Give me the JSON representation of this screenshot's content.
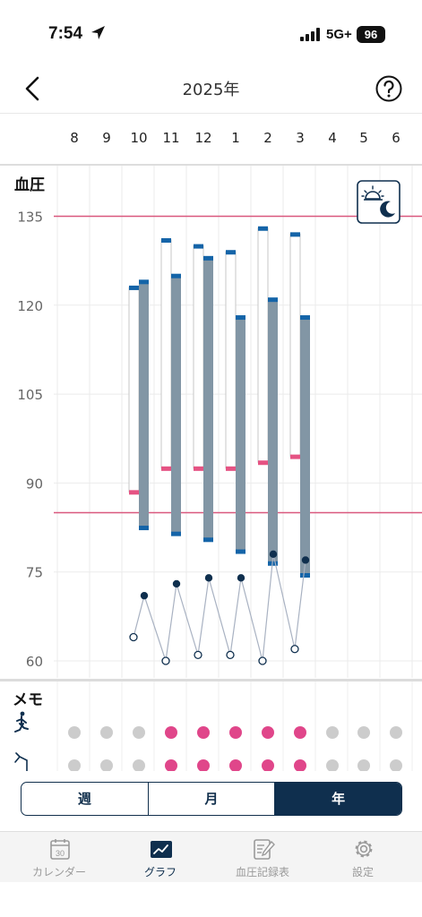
{
  "status_bar": {
    "time": "7:54",
    "network": "5G+",
    "battery": "96"
  },
  "nav": {
    "title": "2025年"
  },
  "months": [
    "8",
    "9",
    "10",
    "11",
    "12",
    "1",
    "2",
    "3",
    "4",
    "5",
    "6"
  ],
  "chart": {
    "ylabel": "血圧",
    "y_ticks": [
      "135",
      "120",
      "105",
      "90",
      "75",
      "60"
    ]
  },
  "chart_data": {
    "type": "bar",
    "categories": [
      "8",
      "9",
      "10",
      "11",
      "12",
      "1",
      "2",
      "3",
      "4",
      "5",
      "6"
    ],
    "ylabel": "血圧",
    "ylim": [
      58,
      150
    ],
    "y_ticks": [
      135,
      120,
      105,
      90,
      75,
      60
    ],
    "reference_lines": [
      135,
      85
    ],
    "series": [
      {
        "values": [
          null,
          null,
          123,
          131,
          130,
          129,
          133,
          132,
          null,
          null,
          null
        ]
      },
      {
        "values": [
          null,
          null,
          88.5,
          92.5,
          92.5,
          92.5,
          93.5,
          94.5,
          null,
          null,
          null
        ]
      },
      {
        "values": [
          null,
          null,
          124,
          125,
          128,
          118,
          121,
          118,
          null,
          null,
          null
        ]
      },
      {
        "values": [
          null,
          null,
          82.5,
          81.5,
          80.5,
          78.5,
          76.5,
          74.5,
          null,
          null,
          null
        ]
      },
      {
        "values": [
          null,
          null,
          64,
          60,
          61,
          61,
          60,
          62,
          null,
          null,
          null
        ]
      },
      {
        "values": [
          null,
          null,
          71,
          73,
          74,
          74,
          78,
          77,
          null,
          null,
          null
        ]
      }
    ],
    "colors": {
      "range_bar": "#8296a5",
      "cap": "#1464a8",
      "pink_marker": "#e55383",
      "limit_line": "#d9587e",
      "dot_dark": "#0f2f4e"
    }
  },
  "memo": {
    "title": "メモ",
    "rows": [
      {
        "icon": "walking-icon",
        "active": [
          false,
          false,
          false,
          true,
          true,
          true,
          true,
          true,
          false,
          false,
          false
        ]
      },
      {
        "icon": "alcohol-icon",
        "active": [
          false,
          false,
          false,
          true,
          true,
          true,
          true,
          true,
          false,
          false,
          false
        ]
      }
    ],
    "dot_active_color": "#e0468a",
    "dot_inactive_color": "#cccccc"
  },
  "period_tabs": [
    {
      "label": "週",
      "active": false
    },
    {
      "label": "月",
      "active": false
    },
    {
      "label": "年",
      "active": true
    }
  ],
  "tab_bar": [
    {
      "label": "カレンダー",
      "icon": "calendar-icon",
      "calendar_number": "30",
      "active": false
    },
    {
      "label": "グラフ",
      "icon": "graph-icon",
      "active": true
    },
    {
      "label": "血圧記録表",
      "icon": "record-sheet-icon",
      "active": false
    },
    {
      "label": "設定",
      "icon": "settings-gear-icon",
      "active": false
    }
  ]
}
